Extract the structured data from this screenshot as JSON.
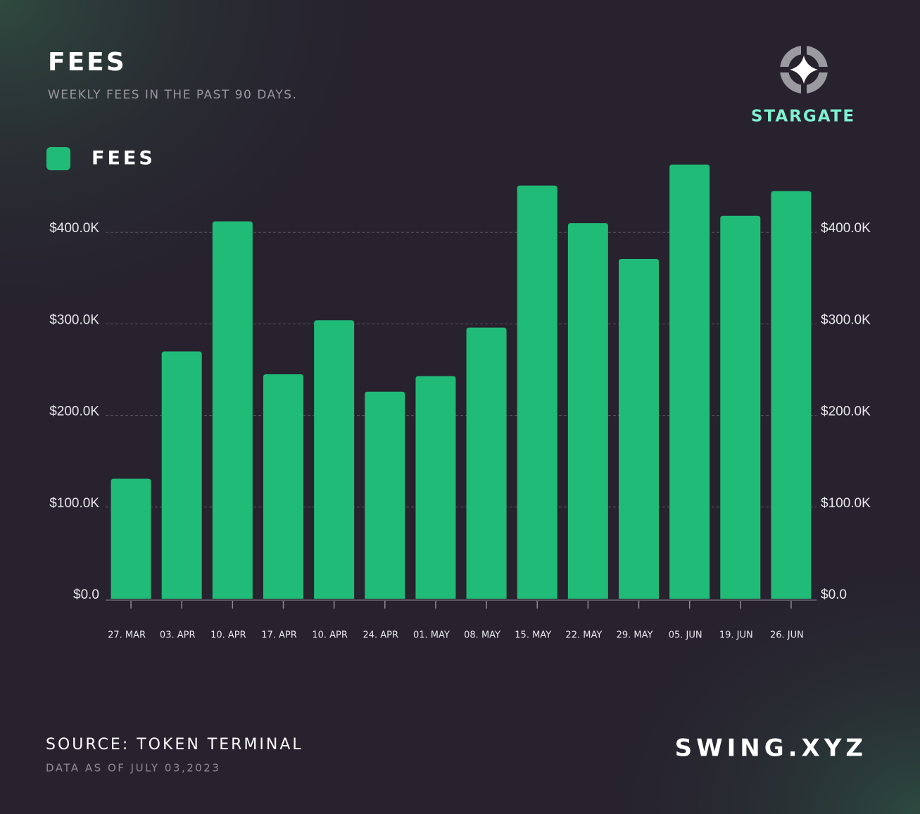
{
  "chart_data": {
    "type": "bar",
    "title": "FEES",
    "subtitle": "WEEKLY FEES IN THE PAST 90 DAYS.",
    "brand": "STARGATE",
    "source": "SOURCE: TOKEN TERMINAL",
    "note": "DATA AS OF JULY 03,2023",
    "watermark": "SWING.XYZ",
    "categories": [
      "27. MAR",
      "03. APR",
      "10. APR",
      "17. APR",
      "10. APR",
      "24. APR",
      "01. MAY",
      "08. MAY",
      "15. MAY",
      "22. MAY",
      "29. MAY",
      "05. JUN",
      "19. JUN",
      "26. JUN"
    ],
    "series": [
      {
        "name": "FEES",
        "color": "#21bb78",
        "values": [
          131000,
          270000,
          412000,
          245000,
          304000,
          226000,
          243000,
          296000,
          451000,
          410000,
          371000,
          474000,
          418000,
          445000
        ]
      }
    ],
    "ylim": [
      0,
      500000
    ],
    "yticks": [
      {
        "value": 0,
        "label": "$0.0"
      },
      {
        "value": 100000,
        "label": "$100.0K"
      },
      {
        "value": 200000,
        "label": "$200.0K"
      },
      {
        "value": 300000,
        "label": "$300.0K"
      },
      {
        "value": 400000,
        "label": "$400.0K"
      }
    ],
    "y2lim": [
      0,
      500000
    ],
    "y2ticks": [
      {
        "value": 0,
        "label": "$0.0"
      },
      {
        "value": 100000,
        "label": "$100.0K"
      },
      {
        "value": 200000,
        "label": "$200.0K"
      },
      {
        "value": 300000,
        "label": "$300.0K"
      },
      {
        "value": 400000,
        "label": "$400.0K"
      }
    ],
    "grid": true
  }
}
